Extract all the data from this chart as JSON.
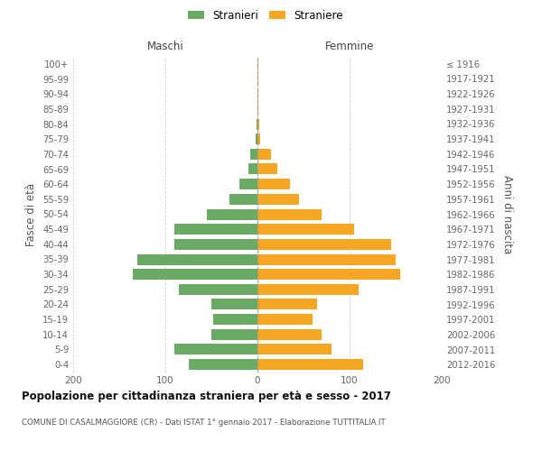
{
  "age_groups": [
    "100+",
    "95-99",
    "90-94",
    "85-89",
    "80-84",
    "75-79",
    "70-74",
    "65-69",
    "60-64",
    "55-59",
    "50-54",
    "45-49",
    "40-44",
    "35-39",
    "30-34",
    "25-29",
    "20-24",
    "15-19",
    "10-14",
    "5-9",
    "0-4"
  ],
  "birth_years": [
    "≤ 1916",
    "1917-1921",
    "1922-1926",
    "1927-1931",
    "1932-1936",
    "1937-1941",
    "1942-1946",
    "1947-1951",
    "1952-1956",
    "1957-1961",
    "1962-1966",
    "1967-1971",
    "1972-1976",
    "1977-1981",
    "1982-1986",
    "1987-1991",
    "1992-1996",
    "1997-2001",
    "2002-2006",
    "2007-2011",
    "2012-2016"
  ],
  "males": [
    0,
    0,
    0,
    0,
    1,
    2,
    8,
    10,
    20,
    30,
    55,
    90,
    90,
    130,
    135,
    85,
    50,
    48,
    50,
    90,
    75
  ],
  "females": [
    1,
    1,
    1,
    1,
    2,
    3,
    15,
    22,
    35,
    45,
    70,
    105,
    145,
    150,
    155,
    110,
    65,
    60,
    70,
    80,
    115
  ],
  "male_color": "#6aaa64",
  "female_color": "#f5a623",
  "background_color": "#ffffff",
  "grid_color": "#cccccc",
  "xlim": 200,
  "title": "Popolazione per cittadinanza straniera per età e sesso - 2017",
  "subtitle": "COMUNE DI CASALMAGGIORE (CR) - Dati ISTAT 1° gennaio 2017 - Elaborazione TUTTITALIA.IT",
  "ylabel_left": "Fasce di età",
  "ylabel_right": "Anni di nascita",
  "label_maschi": "Maschi",
  "label_femmine": "Femmine",
  "legend_male": "Stranieri",
  "legend_female": "Straniere"
}
